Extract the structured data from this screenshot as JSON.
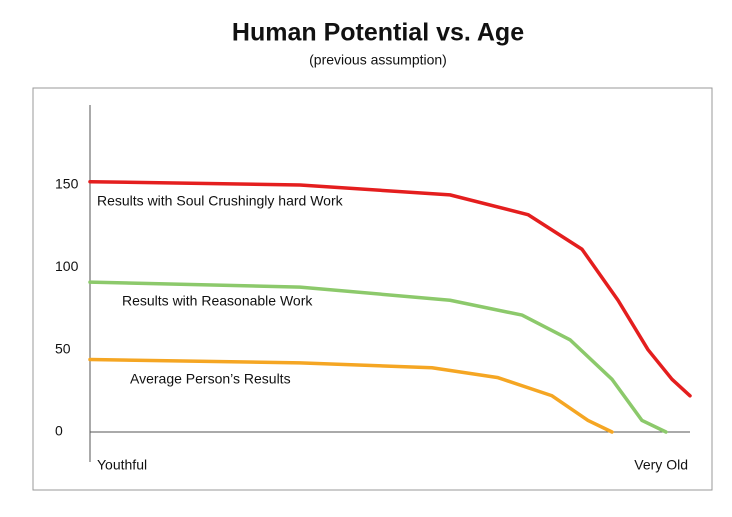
{
  "chart_data": {
    "type": "line",
    "title": "Human Potential vs. Age",
    "subtitle": "(previous assumption)",
    "x": [
      0,
      35,
      60,
      73,
      82,
      88,
      93,
      97,
      100
    ],
    "xlim": [
      0,
      100
    ],
    "xticks": [
      {
        "value": 0,
        "label": "Youthful"
      },
      {
        "value": 100,
        "label": "Very Old"
      }
    ],
    "ylim": [
      0,
      150
    ],
    "yticks": [
      0,
      50,
      100,
      150
    ],
    "grid": false,
    "series": [
      {
        "name": "Results with Soul Crushingly hard Work",
        "color": "#e41e1e",
        "x": [
          0,
          35,
          60,
          73,
          82,
          88,
          93,
          97,
          100
        ],
        "values": [
          152,
          150,
          144,
          132,
          111,
          80,
          50,
          32,
          22
        ]
      },
      {
        "name": "Results with Reasonable Work",
        "color": "#8cc96b",
        "x": [
          0,
          35,
          60,
          72,
          80,
          87,
          92,
          96
        ],
        "values": [
          91,
          88,
          80,
          71,
          56,
          32,
          7,
          0
        ]
      },
      {
        "name": "Average Person’s Results",
        "color": "#f5a623",
        "x": [
          0,
          35,
          57,
          68,
          77,
          83,
          87
        ],
        "values": [
          44,
          42,
          39,
          33,
          22,
          7,
          0
        ]
      }
    ]
  }
}
